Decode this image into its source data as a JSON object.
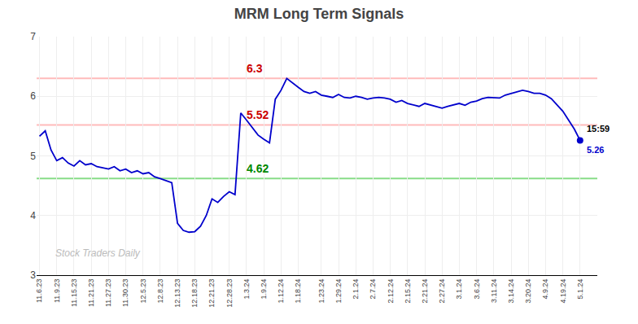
{
  "chart_data": {
    "type": "line",
    "title": "MRM Long Term Signals",
    "categories": [
      "11.6.23",
      null,
      null,
      "11.9.23",
      null,
      null,
      "11.15.23",
      null,
      null,
      "11.21.23",
      null,
      null,
      "11.27.23",
      null,
      null,
      "11.30.23",
      null,
      null,
      "12.5.23",
      null,
      null,
      "12.8.23",
      null,
      null,
      "12.13.23",
      null,
      null,
      "12.18.23",
      null,
      null,
      "12.21.23",
      null,
      null,
      "12.28.23",
      null,
      null,
      "1.3.24",
      null,
      null,
      "1.9.24",
      null,
      null,
      "1.12.24",
      null,
      null,
      "1.18.24",
      null,
      null,
      null,
      "1.23.24",
      null,
      null,
      "1.29.24",
      null,
      null,
      "2.1.24",
      null,
      null,
      "2.7.24",
      null,
      null,
      "2.12.24",
      null,
      null,
      "2.15.24",
      null,
      null,
      "2.21.24",
      null,
      null,
      "2.27.24",
      null,
      null,
      "3.1.24",
      null,
      null,
      "3.6.24",
      null,
      null,
      "3.11.24",
      null,
      null,
      "3.14.24",
      null,
      null,
      "3.20.24",
      null,
      null,
      "4.9.24",
      null,
      null,
      "4.19.24",
      null,
      null,
      "5.1.24"
    ],
    "values": [
      5.33,
      5.42,
      5.1,
      4.92,
      4.97,
      4.88,
      4.83,
      4.92,
      4.85,
      4.87,
      4.82,
      4.8,
      4.78,
      4.82,
      4.75,
      4.78,
      4.72,
      4.75,
      4.7,
      4.72,
      4.65,
      4.62,
      4.58,
      4.55,
      3.87,
      3.75,
      3.72,
      3.73,
      3.82,
      4.0,
      4.28,
      4.22,
      4.32,
      4.4,
      4.35,
      5.72,
      5.6,
      5.48,
      5.35,
      5.28,
      5.22,
      5.95,
      6.1,
      6.3,
      6.22,
      6.15,
      6.08,
      6.05,
      6.08,
      6.02,
      6.0,
      5.98,
      6.03,
      5.98,
      5.97,
      6.0,
      5.98,
      5.95,
      5.97,
      5.98,
      5.97,
      5.95,
      5.9,
      5.93,
      5.88,
      5.85,
      5.83,
      5.88,
      5.85,
      5.82,
      5.8,
      5.83,
      5.85,
      5.88,
      5.85,
      5.9,
      5.92,
      5.96,
      5.98,
      5.98,
      5.97,
      6.02,
      6.05,
      6.08,
      6.1,
      6.08,
      6.05,
      6.05,
      6.02,
      5.96,
      5.85,
      5.75,
      5.6,
      5.45,
      5.26
    ],
    "color": "#0000cc",
    "ylim": [
      3,
      7
    ],
    "yticks": [
      3,
      4,
      5,
      6,
      7
    ],
    "grid": true,
    "hlines": [
      {
        "value": 6.3,
        "label": "6.3",
        "color": "#ffbbbb",
        "label_color": "#cc0000"
      },
      {
        "value": 5.52,
        "label": "5.52",
        "color": "#ffbbbb",
        "label_color": "#cc0000"
      },
      {
        "value": 4.62,
        "label": "4.62",
        "color": "#88dd88",
        "label_color": "#008800"
      }
    ],
    "last_point": {
      "label": "15:59",
      "value_label": "5.26",
      "color": "#0000cc"
    },
    "watermark": "Stock Traders Daily"
  }
}
